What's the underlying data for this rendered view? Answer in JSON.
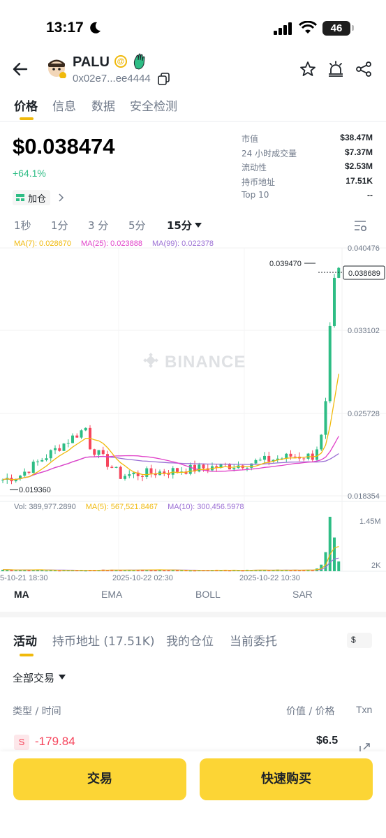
{
  "status": {
    "time": "13:17",
    "battery": "46"
  },
  "token": {
    "name": "PALU",
    "at": "@",
    "address": "0x02e7...ee4444"
  },
  "tabs": [
    "价格",
    "信息",
    "数据",
    "安全检测"
  ],
  "price": {
    "value": "$0.038474",
    "change": "+64.1%",
    "add_label": "加仓"
  },
  "stats": [
    {
      "k": "市值",
      "v": "$38.47M"
    },
    {
      "k": "24 小时成交量",
      "v": "$7.37M"
    },
    {
      "k": "流动性",
      "v": "$2.53M"
    },
    {
      "k": "持币地址",
      "v": "17.51K"
    },
    {
      "k": "Top 10",
      "v": "--"
    }
  ],
  "intervals": [
    "1秒",
    "1分",
    "3 分",
    "5分",
    "15分"
  ],
  "ma": [
    {
      "label": "MA(7): 0.028670",
      "color": "#f0b90b"
    },
    {
      "label": "MA(25): 0.023888",
      "color": "#e040c8"
    },
    {
      "label": "MA(99): 0.022378",
      "color": "#9b6fd4"
    }
  ],
  "vol_legend": [
    {
      "label": "Vol: 389,977.2890",
      "color": "#707a8a"
    },
    {
      "label": "MA(5): 567,521.8467",
      "color": "#f0b90b"
    },
    {
      "label": "MA(10): 300,456.5978",
      "color": "#9b6fd4"
    }
  ],
  "chart": {
    "watermark": "BINANCE",
    "price_axis": [
      "0.040476",
      "0.033102",
      "0.025728",
      "0.018354"
    ],
    "current_price": "0.038689",
    "high_label": "0.039470",
    "low_label": "0.019360",
    "vol_axis": [
      "1.45M",
      "2K"
    ],
    "time_axis": [
      "5-10-21 18:30",
      "2025-10-22 02:30",
      "2025-10-22 10:30"
    ]
  },
  "chart_data": {
    "type": "candlestick",
    "price_range": [
      0.018354,
      0.040476
    ],
    "last_price": 0.038689,
    "high": 0.03947,
    "low": 0.01936,
    "ma7": 0.02867,
    "ma25": 0.023888,
    "ma99": 0.022378,
    "volume_range": [
      2000,
      1450000
    ]
  },
  "indicators": [
    "MA",
    "EMA",
    "BOLL",
    "SAR"
  ],
  "activity_tabs": [
    "活动",
    "持币地址 (17.51K)",
    "我的仓位",
    "当前委托"
  ],
  "currency_toggle": "$",
  "filter": "全部交易",
  "table": {
    "col_left": "类型 / 时间",
    "col_right": "价值 / 价格",
    "col_txn": "Txn"
  },
  "trade": {
    "side": "S",
    "amount": "-179.84",
    "value": "$6.5"
  },
  "buttons": {
    "trade": "交易",
    "quick_buy": "快速购买"
  }
}
